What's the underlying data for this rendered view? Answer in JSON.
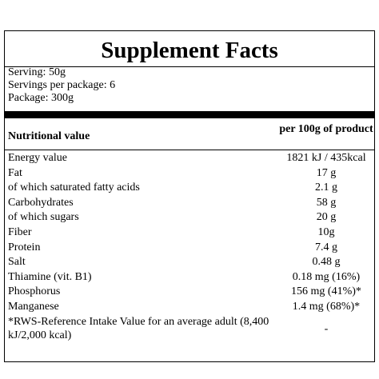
{
  "header": {
    "title": "Supplement Facts"
  },
  "serving": [
    "Serving: 50g",
    "Servings per package: 6",
    "Package: 300g"
  ],
  "table": {
    "header": [
      "Nutritional value",
      "per 100g of product"
    ],
    "rows": [
      [
        "Energy value",
        "1821 kJ / 435kcal"
      ],
      [
        "Fat",
        "17 g"
      ],
      [
        "of which saturated fatty acids",
        "2.1 g"
      ],
      [
        "Carbohydrates",
        "58 g"
      ],
      [
        "of which sugars",
        "20 g"
      ],
      [
        "Fiber",
        "10g"
      ],
      [
        "Protein",
        "7.4 g"
      ],
      [
        "Salt",
        "0.48 g"
      ],
      [
        "Thiamine (vit. B1)",
        "0.18 mg (16%)"
      ],
      [
        "Phosphorus",
        "156 mg (41%)*"
      ],
      [
        "Manganese",
        "1.4 mg (68%)*"
      ],
      [
        "*RWS-Reference Intake Value for an average adult (8,400 kJ/2,000 kcal)",
        "-"
      ]
    ]
  }
}
